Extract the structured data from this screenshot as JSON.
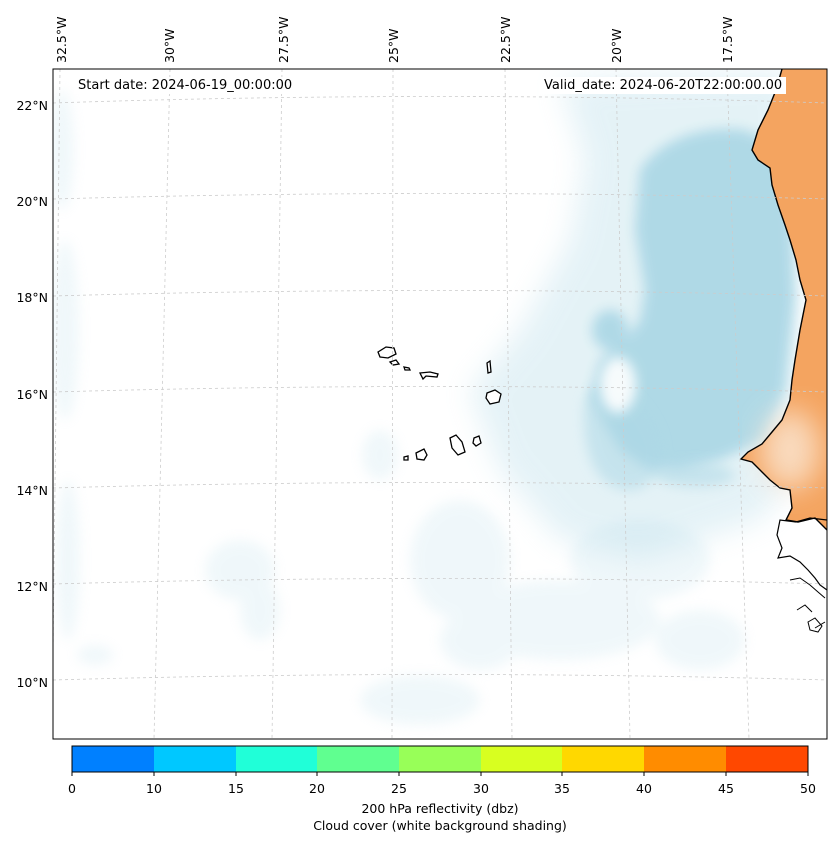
{
  "map": {
    "start_date": "Start date: 2024-06-19_00:00:00",
    "valid_date": "Valid_date: 2024-06-20T22:00:00.00",
    "longitude_labels": [
      "32.5°W",
      "30°W",
      "27.5°W",
      "25°W",
      "22.5°W",
      "20°W",
      "17.5°W"
    ],
    "latitude_labels": [
      "22°N",
      "20°N",
      "18°N",
      "16°N",
      "14°N",
      "12°N",
      "10°N"
    ],
    "extent": {
      "lon_west": -32.7,
      "lon_east": -15.6,
      "lat_south": 8.9,
      "lat_north": 22.8
    },
    "gridlines": true,
    "features": [
      "Cabo Verde islands",
      "West African coastline",
      "cloud cover shading",
      "reflectivity shading"
    ]
  },
  "colorbar": {
    "ticks": [
      "0",
      "10",
      "15",
      "20",
      "25",
      "30",
      "35",
      "40",
      "45",
      "50"
    ],
    "colors": [
      "#0080ff",
      "#00c8ff",
      "#20ffd8",
      "#60ff90",
      "#98ff58",
      "#d8ff20",
      "#ffd800",
      "#ff8c00",
      "#ff4800"
    ],
    "label_line1": "200 hPa reflectivity (dbz)",
    "label_line2": "Cloud cover (white background shading)"
  },
  "colors": {
    "land": "#f4a460",
    "cloud": "#add8e6",
    "grid": "#cccccc"
  }
}
